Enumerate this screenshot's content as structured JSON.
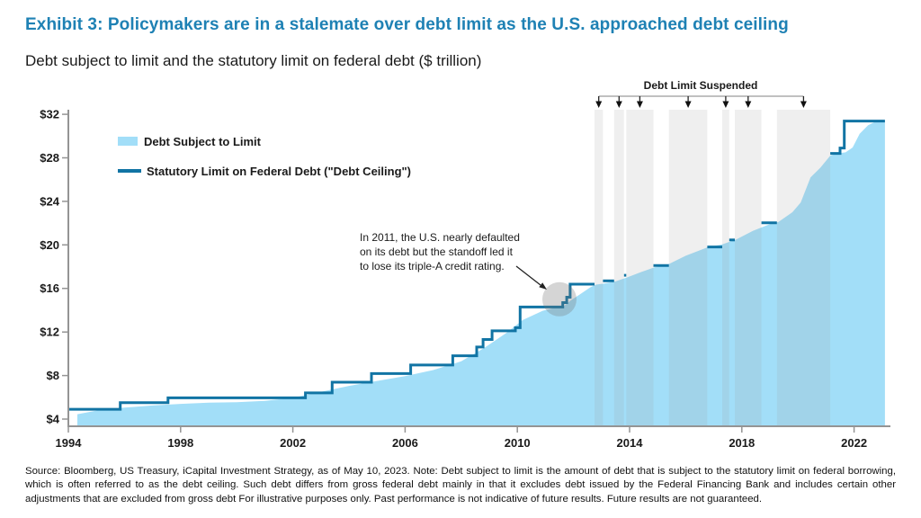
{
  "header": {
    "title": "Exhibit 3: Policymakers are in a stalemate over debt limit as the U.S. approached debt ceiling",
    "title_color": "#1e81b4",
    "subtitle": "Debt subject to limit and the statutory limit on federal debt ($ trillion)"
  },
  "footer": {
    "source_note": "Source: Bloomberg, US Treasury, iCapital Investment Strategy, as of May 10, 2023. Note: Debt subject to limit is the amount of debt that is subject to the statutory limit on federal borrowing, which is often referred to as the debt ceiling. Such debt differs from gross federal debt mainly in that it excludes debt issued by the Federal Financing Bank and includes certain other adjustments that are excluded from gross debt For illustrative purposes only. Past performance is not indicative of future results. Future results are not guaranteed."
  },
  "chart_data": {
    "type": "area",
    "title": "Exhibit 3: Policymakers are in a stalemate over debt limit as the U.S. approached debt ceiling",
    "subtitle": "Debt subject to limit and the statutory limit on federal debt ($ trillion)",
    "unit": "$ trillion",
    "grid": false,
    "x_axis": {
      "range": [
        1994,
        2023.15
      ],
      "ticks": [
        {
          "value": 1994,
          "label": "1994"
        },
        {
          "value": 1998,
          "label": "1998"
        },
        {
          "value": 2002,
          "label": "2002"
        },
        {
          "value": 2006,
          "label": "2006"
        },
        {
          "value": 2010,
          "label": "2010"
        },
        {
          "value": 2014,
          "label": "2014"
        },
        {
          "value": 2018,
          "label": "2018"
        },
        {
          "value": 2022,
          "label": "2022"
        }
      ]
    },
    "y_axis": {
      "range": [
        4,
        32
      ],
      "ticks": [
        {
          "value": 4,
          "label": "$4"
        },
        {
          "value": 8,
          "label": "$8"
        },
        {
          "value": 12,
          "label": "$12"
        },
        {
          "value": 16,
          "label": "$16"
        },
        {
          "value": 20,
          "label": "$20"
        },
        {
          "value": 24,
          "label": "$24"
        },
        {
          "value": 28,
          "label": "$28"
        },
        {
          "value": 32,
          "label": "$32"
        }
      ]
    },
    "area_series": {
      "name": "Debt Subject to Limit",
      "color": "#a2def8",
      "points": [
        [
          1994.32,
          4.45
        ],
        [
          1995,
          4.78
        ],
        [
          1996,
          5.05
        ],
        [
          1997,
          5.25
        ],
        [
          1998,
          5.4
        ],
        [
          1999,
          5.5
        ],
        [
          2000,
          5.55
        ],
        [
          2001,
          5.68
        ],
        [
          2002,
          5.95
        ],
        [
          2003,
          6.5
        ],
        [
          2004,
          7.05
        ],
        [
          2005,
          7.5
        ],
        [
          2006,
          7.95
        ],
        [
          2007,
          8.5
        ],
        [
          2008,
          9.3
        ],
        [
          2008.8,
          10.5
        ],
        [
          2009.6,
          11.9
        ],
        [
          2010.2,
          13.1
        ],
        [
          2010.9,
          13.95
        ],
        [
          2011.3,
          14.2
        ],
        [
          2011.62,
          14.28
        ],
        [
          2011.9,
          14.9
        ],
        [
          2012.2,
          15.4
        ],
        [
          2012.6,
          16.1
        ],
        [
          2012.8,
          16.35
        ],
        [
          2013.1,
          16.45
        ],
        [
          2013.5,
          16.65
        ],
        [
          2013.9,
          17.0
        ],
        [
          2014.4,
          17.5
        ],
        [
          2014.9,
          17.95
        ],
        [
          2015.3,
          18.12
        ],
        [
          2016,
          19.0
        ],
        [
          2016.8,
          19.8
        ],
        [
          2017.3,
          20.05
        ],
        [
          2017.8,
          20.5
        ],
        [
          2018.4,
          21.3
        ],
        [
          2019.0,
          21.9
        ],
        [
          2019.3,
          22.1
        ],
        [
          2019.8,
          23.0
        ],
        [
          2020.1,
          23.9
        ],
        [
          2020.45,
          26.2
        ],
        [
          2020.8,
          27.1
        ],
        [
          2021.15,
          28.2
        ],
        [
          2021.4,
          28.4
        ],
        [
          2021.7,
          28.5
        ],
        [
          2021.95,
          28.95
        ],
        [
          2022.2,
          30.2
        ],
        [
          2022.5,
          31.0
        ],
        [
          2022.75,
          31.3
        ],
        [
          2023.1,
          31.32
        ]
      ]
    },
    "limit_series": {
      "name": "Statutory Limit on Federal Debt (\"Debt Ceiling\")",
      "color": "#1174a4",
      "segments": [
        [
          [
            1994,
            4.9
          ],
          [
            1995.85,
            4.9
          ],
          [
            1995.85,
            5.5
          ],
          [
            1997.55,
            5.5
          ],
          [
            1997.55,
            5.95
          ],
          [
            2002.45,
            5.95
          ],
          [
            2002.45,
            6.4
          ],
          [
            2003.4,
            6.4
          ],
          [
            2003.4,
            7.384
          ],
          [
            2004.8,
            7.384
          ],
          [
            2004.8,
            8.184
          ],
          [
            2006.2,
            8.184
          ],
          [
            2006.2,
            8.965
          ],
          [
            2007.7,
            8.965
          ],
          [
            2007.7,
            9.815
          ],
          [
            2008.55,
            9.815
          ],
          [
            2008.55,
            10.615
          ],
          [
            2008.78,
            10.615
          ],
          [
            2008.78,
            11.315
          ],
          [
            2009.1,
            11.315
          ],
          [
            2009.1,
            12.104
          ],
          [
            2009.93,
            12.104
          ],
          [
            2009.93,
            12.394
          ],
          [
            2010.1,
            12.394
          ],
          [
            2010.1,
            14.294
          ],
          [
            2011.62,
            14.294
          ],
          [
            2011.62,
            14.694
          ],
          [
            2011.76,
            14.694
          ],
          [
            2011.76,
            15.194
          ],
          [
            2011.88,
            15.194
          ],
          [
            2011.88,
            16.394
          ],
          [
            2012.75,
            16.394
          ]
        ],
        [
          [
            2013.05,
            16.699
          ],
          [
            2013.45,
            16.699
          ]
        ],
        [
          [
            2013.8,
            17.212
          ],
          [
            2013.88,
            17.212
          ]
        ],
        [
          [
            2014.85,
            18.113
          ],
          [
            2015.4,
            18.113
          ]
        ],
        [
          [
            2016.77,
            19.809
          ],
          [
            2017.3,
            19.809
          ]
        ],
        [
          [
            2017.55,
            20.456
          ],
          [
            2017.75,
            20.456
          ]
        ],
        [
          [
            2018.7,
            22.03
          ],
          [
            2019.25,
            22.03
          ]
        ],
        [
          [
            2021.15,
            28.4
          ],
          [
            2021.5,
            28.4
          ],
          [
            2021.5,
            28.9
          ],
          [
            2021.65,
            28.9
          ],
          [
            2021.65,
            31.381
          ],
          [
            2023.1,
            31.381
          ]
        ]
      ]
    },
    "suspensions": {
      "label": "Debt Limit Suspended",
      "band_color": "rgba(158,158,158,0.16)",
      "bands": [
        [
          2012.75,
          2013.05
        ],
        [
          2013.45,
          2013.8
        ],
        [
          2013.88,
          2014.85
        ],
        [
          2015.4,
          2016.77
        ],
        [
          2017.3,
          2017.55
        ],
        [
          2017.75,
          2018.7
        ],
        [
          2019.25,
          2021.15
        ]
      ]
    },
    "annotation_2011": {
      "text": "In 2011, the U.S. nearly defaulted\non its debt but the standoff led it\nto lose its triple-A credit rating.",
      "highlight_year": 2011.5,
      "highlight_value": 15.0,
      "highlight_color": "rgba(115,115,115,0.30)"
    }
  }
}
